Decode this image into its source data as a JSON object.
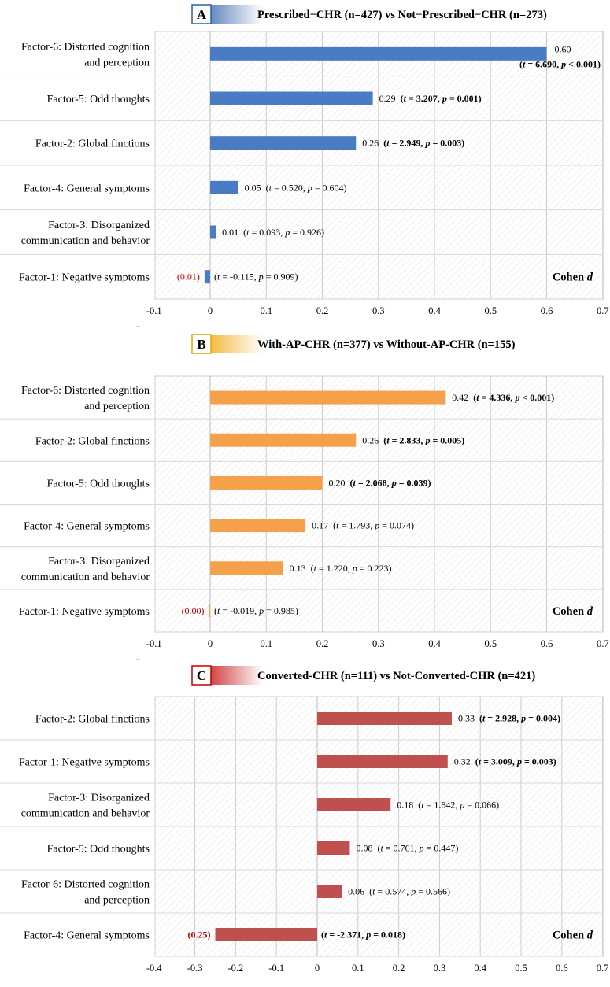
{
  "chart_data": [
    {
      "panel": "A",
      "title": "Prescribed−CHR (n=427) vs Not−Prescribed−CHR (n=273)",
      "type": "bar",
      "orientation": "horizontal",
      "color": "#4a7cc4",
      "xlim": [
        -0.1,
        0.7
      ],
      "xticks": [
        "-0.1",
        "0",
        "0.1",
        "0.2",
        "0.3",
        "0.4",
        "0.5",
        "0.6",
        "0.7"
      ],
      "xlabel": "Cohen d",
      "bars": [
        {
          "label": [
            "Factor-6: Distorted cognition",
            "and perception"
          ],
          "value": 0.6,
          "value_label": "0.60",
          "t": "6.690",
          "p": "< 0.001",
          "sig": true,
          "stat_below": true
        },
        {
          "label": [
            "Factor-5: Odd thoughts"
          ],
          "value": 0.29,
          "value_label": "0.29",
          "t": "3.207",
          "p": "= 0.001",
          "sig": true
        },
        {
          "label": [
            "Factor-2: Global finctions"
          ],
          "value": 0.26,
          "value_label": "0.26",
          "t": "2.949",
          "p": "= 0.003",
          "sig": true
        },
        {
          "label": [
            "Factor-4: General symptoms"
          ],
          "value": 0.05,
          "value_label": "0.05",
          "t": "0.520",
          "p": "= 0.604",
          "sig": false
        },
        {
          "label": [
            "Factor-3: Disorganized",
            "communication and behavior"
          ],
          "value": 0.01,
          "value_label": "0.01",
          "t": "0.093",
          "p": "= 0.926",
          "sig": false
        },
        {
          "label": [
            "Factor-1: Negative symptoms"
          ],
          "value": -0.01,
          "value_label": "(0.01)",
          "t": "-0.115",
          "p": "= 0.909",
          "sig": false,
          "negative": true
        }
      ]
    },
    {
      "panel": "B",
      "title": "With-AP-CHR (n=377) vs Without-AP-CHR (n=155)",
      "type": "bar",
      "orientation": "horizontal",
      "color": "#f5a04a",
      "xlim": [
        -0.1,
        0.7
      ],
      "xticks": [
        "-0.1",
        "0",
        "0.1",
        "0.2",
        "0.3",
        "0.4",
        "0.5",
        "0.6",
        "0.7"
      ],
      "xlabel": "Cohen d",
      "bars": [
        {
          "label": [
            "Factor-6: Distorted cognition",
            "and perception"
          ],
          "value": 0.42,
          "value_label": "0.42",
          "t": "4.336",
          "p": "< 0.001",
          "sig": true
        },
        {
          "label": [
            "Factor-2: Global finctions"
          ],
          "value": 0.26,
          "value_label": "0.26",
          "t": "2.833",
          "p": "= 0.005",
          "sig": true
        },
        {
          "label": [
            "Factor-5: Odd thoughts"
          ],
          "value": 0.2,
          "value_label": "0.20",
          "t": "2.068",
          "p": "= 0.039",
          "sig": true
        },
        {
          "label": [
            "Factor-4: General symptoms"
          ],
          "value": 0.17,
          "value_label": "0.17",
          "t": "1.793",
          "p": "= 0.074",
          "sig": false
        },
        {
          "label": [
            "Factor-3: Disorganized",
            "communication and behavior"
          ],
          "value": 0.13,
          "value_label": "0.13",
          "t": "1.220",
          "p": "= 0.223",
          "sig": false
        },
        {
          "label": [
            "Factor-1: Negative symptoms"
          ],
          "value": -0.002,
          "value_label": "(0.00)",
          "t": "-0.019",
          "p": "= 0.985",
          "sig": false,
          "negative": true
        }
      ]
    },
    {
      "panel": "C",
      "title": "Converted-CHR (n=111) vs Not-Converted-CHR (n=421)",
      "type": "bar",
      "orientation": "horizontal",
      "color": "#c0504d",
      "xlim": [
        -0.4,
        0.7
      ],
      "xticks": [
        "-0.4",
        "-0.3",
        "-0.2",
        "-0.1",
        "0",
        "0.1",
        "0.2",
        "0.3",
        "0.4",
        "0.5",
        "0.6",
        "0.7"
      ],
      "xlabel": "Cohen d",
      "bars": [
        {
          "label": [
            "Factor-2: Global finctions"
          ],
          "value": 0.33,
          "value_label": "0.33",
          "t": "2.928",
          "p": "= 0.004",
          "sig": true
        },
        {
          "label": [
            "Factor-1: Negative symptoms"
          ],
          "value": 0.32,
          "value_label": "0.32",
          "t": "3.009",
          "p": "= 0.003",
          "sig": true
        },
        {
          "label": [
            "Factor-3: Disorganized",
            "communication and behavior"
          ],
          "value": 0.18,
          "value_label": "0.18",
          "t": "1.842",
          "p": "= 0.066",
          "sig": false
        },
        {
          "label": [
            "Factor-5: Odd thoughts"
          ],
          "value": 0.08,
          "value_label": "0.08",
          "t": "0.761",
          "p": "= 0.447",
          "sig": false
        },
        {
          "label": [
            "Factor-6: Distorted cognition",
            "and perception"
          ],
          "value": 0.06,
          "value_label": "0.06",
          "t": "0.574",
          "p": "= 0.566",
          "sig": false
        },
        {
          "label": [
            "Factor-4: General symptoms"
          ],
          "value": -0.25,
          "value_label": "(0.25)",
          "t": "-2.371",
          "p": "= 0.018",
          "sig": true,
          "negative": true
        }
      ]
    }
  ],
  "colors": {
    "negative_label": "#c00000",
    "axis": "#888888",
    "grid": "#d0d0d0"
  }
}
